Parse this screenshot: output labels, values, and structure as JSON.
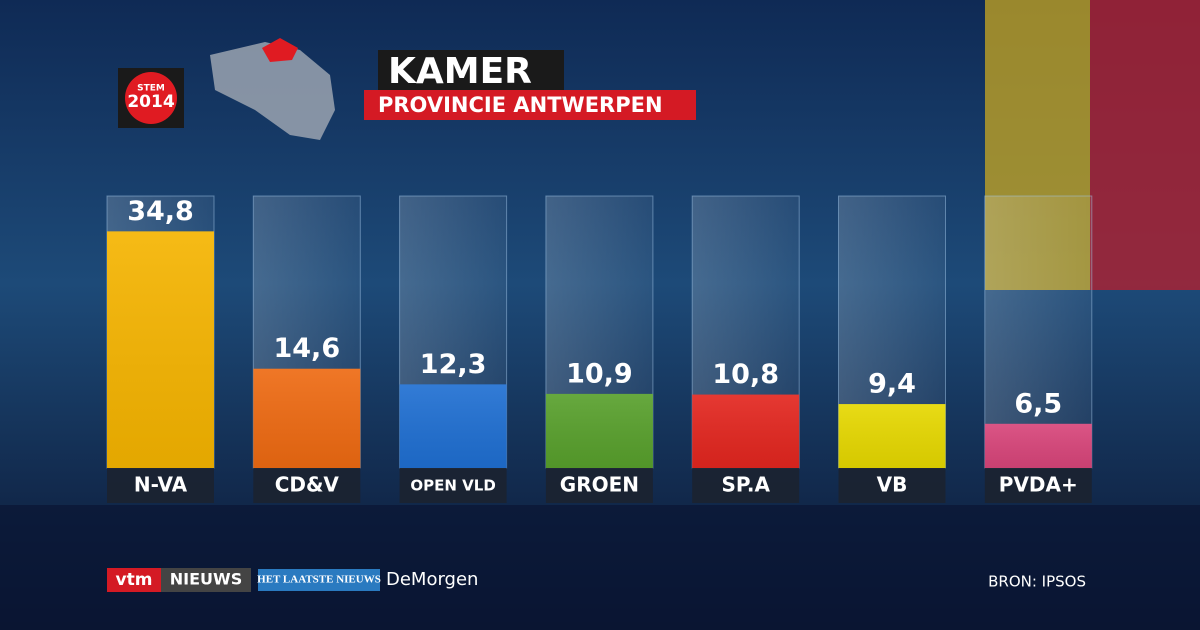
{
  "chart_data": {
    "type": "bar",
    "title": "KAMER",
    "subtitle": "PROVINCIE ANTWERPEN",
    "logo": {
      "top": "STEM",
      "bottom": "2014"
    },
    "categories": [
      "N-VA",
      "CD&V",
      "OPEN VLD",
      "GROEN",
      "SP.A",
      "VB",
      "PVDA+"
    ],
    "values": [
      34.8,
      14.6,
      12.3,
      10.9,
      10.8,
      9.4,
      6.5
    ],
    "value_labels": [
      "34,8",
      "14,6",
      "12,3",
      "10,9",
      "10,8",
      "9,4",
      "6,5"
    ],
    "colors": [
      "#f5b400",
      "#ee6a12",
      "#1f6fd2",
      "#58a02c",
      "#e3261f",
      "#e6d800",
      "#d8457a"
    ],
    "ylim": [
      0,
      40
    ],
    "sponsors": [
      "vtm",
      "NIEUWS",
      "HET LAATSTE NIEUWS",
      "DeMorgen"
    ],
    "source": "BRON: IPSOS"
  }
}
